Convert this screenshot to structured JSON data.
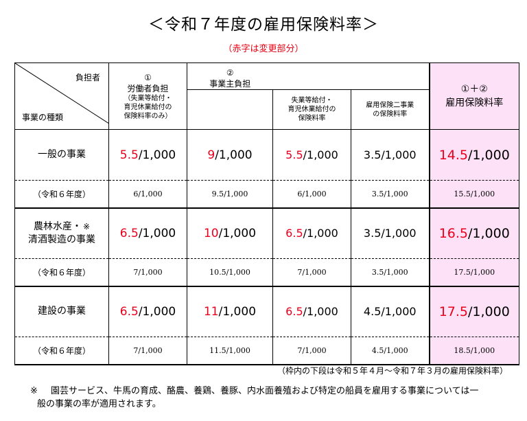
{
  "title": "＜令和７年度の雇用保険料率＞",
  "subtitle": "（赤字は変更部分）",
  "header": {
    "burden": "負担者",
    "kind": "事業の種類",
    "worker_num": "①",
    "worker": "労働者負担",
    "worker_note1": "（失業等給付・",
    "worker_note2": "育児休業給付の",
    "worker_note3": "保険料率のみ）",
    "employer_num": "②",
    "employer": "事業主負担",
    "unemp1": "失業等給付・",
    "unemp2": "育児休業給付の",
    "unemp3": "保険料率",
    "two1": "雇用保険二事業",
    "two2": "の保険料率",
    "total_num": "①＋②",
    "total": "雇用保険料率"
  },
  "rows": [
    {
      "label1": "一般の事業",
      "label2": "",
      "star": "",
      "worker_red": "5.5",
      "worker_rest": "/1,000",
      "employer_red": "9",
      "employer_rest": "/1,000",
      "unemp_red": "5.5",
      "unemp_rest": "/1,000",
      "two": "3.5/1,000",
      "total_red": "14.5",
      "total_rest": "/1,000",
      "prev_label": "（令和６年度）",
      "prev_worker": "6/1,000",
      "prev_employer": "9.5/1,000",
      "prev_unemp": "6/1,000",
      "prev_two": "3.5/1,000",
      "prev_total": "15.5/1,000"
    },
    {
      "label1": "農林水産・",
      "label2": "清酒製造の事業",
      "star": "※",
      "worker_red": "6.5",
      "worker_rest": "/1,000",
      "employer_red": "10",
      "employer_rest": "/1,000",
      "unemp_red": "6.5",
      "unemp_rest": "/1,000",
      "two": "3.5/1,000",
      "total_red": "16.5",
      "total_rest": "/1,000",
      "prev_label": "（令和６年度）",
      "prev_worker": "7/1,000",
      "prev_employer": "10.5/1,000",
      "prev_unemp": "7/1,000",
      "prev_two": "3.5/1,000",
      "prev_total": "17.5/1,000"
    },
    {
      "label1": "建設の事業",
      "label2": "",
      "star": "",
      "worker_red": "6.5",
      "worker_rest": "/1,000",
      "employer_red": "11",
      "employer_rest": "/1,000",
      "unemp_red": "6.5",
      "unemp_rest": "/1,000",
      "two": "4.5/1,000",
      "total_red": "17.5",
      "total_rest": "/1,000",
      "prev_label": "（令和６年度）",
      "prev_worker": "7/1,000",
      "prev_employer": "11.5/1,000",
      "prev_unemp": "7/1,000",
      "prev_two": "4.5/1,000",
      "prev_total": "18.5/1,000"
    }
  ],
  "footnote_period": "（枠内の下段は令和５年４月～令和７年３月の雇用保険料率）",
  "footnote_mark": "※",
  "footnote_text1": "園芸サービス、牛馬の育成、酪農、養鶏、養豚、内水面養殖および特定の船員を雇用する事業については一",
  "footnote_text2": "般の事業の率が適用されます。",
  "colors": {
    "red": "#e8001c",
    "pink": "#fde1f7",
    "border": "#000000"
  }
}
